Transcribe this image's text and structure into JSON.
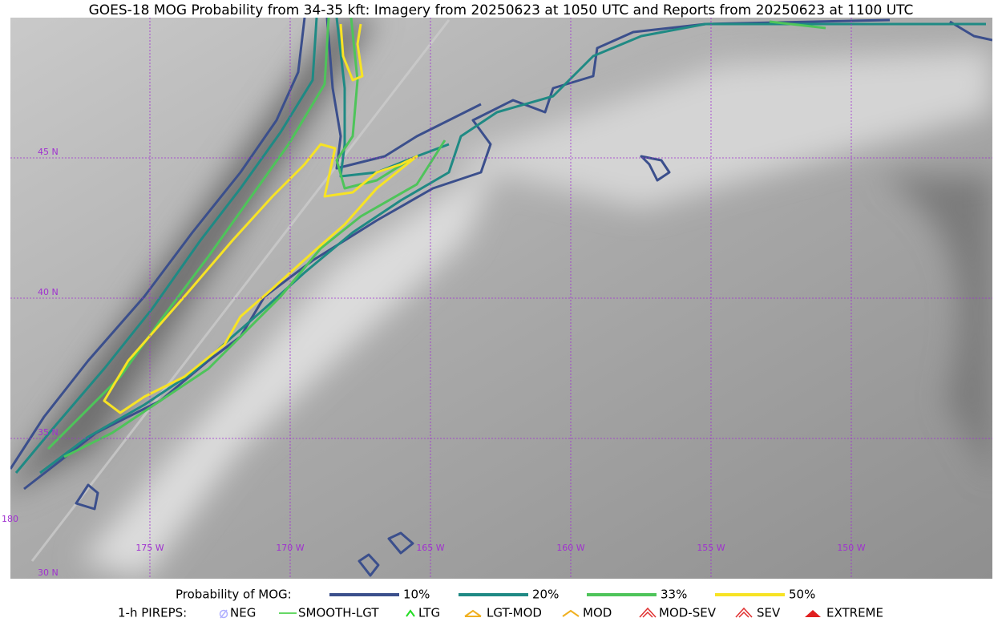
{
  "title": "GOES-18 MOG Probability from 34-35 kft: Imagery from 20250623 at 1050 UTC and Reports from 20250623 at 1100 UTC",
  "latitude_labels": [
    "45 N",
    "40 N",
    "35 N",
    "30 N"
  ],
  "longitude_labels": [
    "180",
    "175 W",
    "170 W",
    "165 W",
    "160 W",
    "155 W",
    "150 W"
  ],
  "legend": {
    "probability_title": "Probability of MOG:",
    "probability_levels": [
      {
        "label": "10%",
        "color": "#3b4f8c"
      },
      {
        "label": "20%",
        "color": "#1f8a84"
      },
      {
        "label": "33%",
        "color": "#4ec45a"
      },
      {
        "label": "50%",
        "color": "#f7e324"
      }
    ],
    "pireps_title": "1-h PIREPS:",
    "pireps": [
      "NEG",
      "SMOOTH-LGT",
      "LTG",
      "LGT-MOD",
      "MOD",
      "MOD-SEV",
      "SEV",
      "EXTREME"
    ]
  }
}
